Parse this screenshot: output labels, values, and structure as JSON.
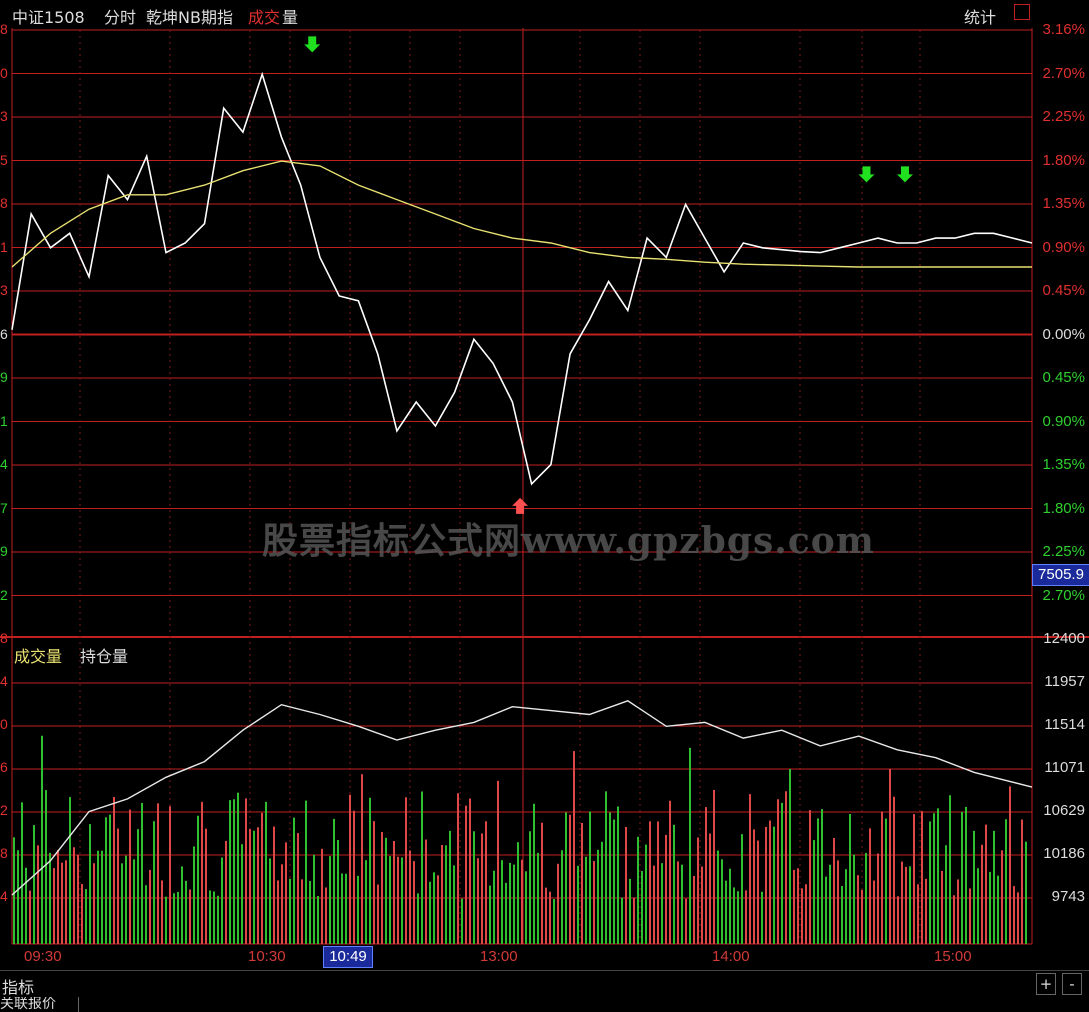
{
  "header": {
    "instrument": "中证1508",
    "view": "分时",
    "indicator": "乾坤NB期指",
    "vol_label_red": "成交",
    "vol_label_white": "量",
    "stats_label": "统计"
  },
  "watermark": "股票指标公式网www.gpzbgs.com",
  "price_axis": {
    "right_labels": [
      "3.16%",
      "2.70%",
      "2.25%",
      "1.80%",
      "1.35%",
      "0.90%",
      "0.45%",
      "0.00%",
      "0.45%",
      "0.90%",
      "1.35%",
      "1.80%",
      "2.25%",
      "2.70%"
    ],
    "left_labels": [
      "8",
      "0",
      "3",
      "5",
      "8",
      "1",
      "3",
      "6",
      "9",
      "1",
      "4",
      "7",
      "9",
      "2"
    ],
    "current_value": "7505.9"
  },
  "volume_panel": {
    "legend_volume": "成交量",
    "legend_oi": "持仓量",
    "right_labels": [
      "12400",
      "11957",
      "11514",
      "11071",
      "10629",
      "10186",
      "9743"
    ],
    "left_labels": [
      "8",
      "4",
      "0",
      "6",
      "2",
      "8",
      "4"
    ]
  },
  "time_axis": {
    "labels": [
      "09:30",
      "10:30",
      "13:00",
      "14:00",
      "15:00"
    ],
    "cursor_time": "10:49"
  },
  "footer": {
    "tab_label": "指标",
    "bottom_tab": "关联报价",
    "plus": "+",
    "minus": "-"
  },
  "colors": {
    "grid": "#c02020",
    "price_line": "#ffffff",
    "avg_line": "#e8e070",
    "up_bar": "#e04848",
    "down_bar": "#2fc02f",
    "up_text": "#e03030",
    "down_text": "#2fd02f",
    "buy_arrow": "#ff5050",
    "sell_arrow": "#20e020"
  },
  "chart_data": {
    "type": "line",
    "xlabel": "",
    "ylabel": "",
    "y_unit": "% change",
    "ylim": [
      -3.16,
      3.16
    ],
    "x_ticks": [
      "09:30",
      "10:30",
      "13:00",
      "14:00",
      "15:00"
    ],
    "series": [
      {
        "x": [
          0,
          5,
          10,
          15,
          20,
          25,
          30,
          35,
          40,
          45,
          50,
          55,
          60,
          65,
          70,
          75,
          80,
          85,
          90,
          95,
          100,
          105,
          110,
          115,
          120,
          125,
          130,
          135,
          140,
          145,
          150,
          155,
          160,
          165,
          170,
          175,
          180,
          185,
          190,
          195,
          200,
          205,
          210,
          215,
          220,
          225,
          230,
          235,
          240,
          245,
          250,
          255,
          260,
          265
        ],
        "values": [
          0.05,
          1.25,
          0.9,
          1.05,
          0.6,
          1.65,
          1.4,
          1.85,
          0.85,
          0.95,
          1.15,
          2.35,
          2.1,
          2.7,
          2.05,
          1.55,
          0.8,
          0.4,
          0.35,
          -0.2,
          -1.0,
          -0.7,
          -0.95,
          -0.6,
          -0.05,
          -0.3,
          -0.7,
          -1.55,
          -1.35,
          -0.2,
          0.15,
          0.55,
          0.25,
          1.0,
          0.8,
          1.35,
          1.0,
          0.65,
          0.95,
          0.9,
          0.88,
          0.86,
          0.85,
          0.9,
          0.95,
          1.0,
          0.95,
          0.95,
          1.0,
          1.0,
          1.05,
          1.05,
          1.0,
          0.95
        ]
      },
      {
        "x": [
          0,
          10,
          20,
          30,
          40,
          50,
          60,
          70,
          80,
          90,
          100,
          110,
          120,
          130,
          140,
          150,
          160,
          170,
          180,
          190,
          200,
          210,
          220,
          230,
          240,
          250,
          265
        ],
        "values": [
          0.7,
          1.05,
          1.3,
          1.45,
          1.45,
          1.55,
          1.7,
          1.8,
          1.75,
          1.55,
          1.4,
          1.25,
          1.1,
          1.0,
          0.95,
          0.85,
          0.8,
          0.78,
          0.75,
          0.73,
          0.72,
          0.71,
          0.7,
          0.7,
          0.7,
          0.7,
          0.7
        ]
      }
    ],
    "markers": [
      {
        "type": "sell",
        "x": 78,
        "value": 2.7
      },
      {
        "type": "buy",
        "x": 132,
        "value": -1.55
      },
      {
        "type": "sell",
        "x": 222,
        "value": 1.35
      },
      {
        "type": "sell",
        "x": 232,
        "value": 1.35
      }
    ],
    "volume": {
      "ylim": [
        9300,
        12400
      ],
      "open_interest_x": [
        0,
        10,
        20,
        30,
        40,
        50,
        60,
        70,
        80,
        90,
        100,
        110,
        120,
        130,
        140,
        150,
        160,
        170,
        180,
        190,
        200,
        210,
        220,
        230,
        240,
        250,
        265
      ],
      "open_interest": [
        9800,
        10150,
        10650,
        10780,
        11000,
        11160,
        11480,
        11740,
        11640,
        11520,
        11380,
        11480,
        11560,
        11720,
        11680,
        11640,
        11780,
        11520,
        11560,
        11400,
        11480,
        11320,
        11420,
        11280,
        11200,
        11050,
        10900
      ]
    }
  }
}
